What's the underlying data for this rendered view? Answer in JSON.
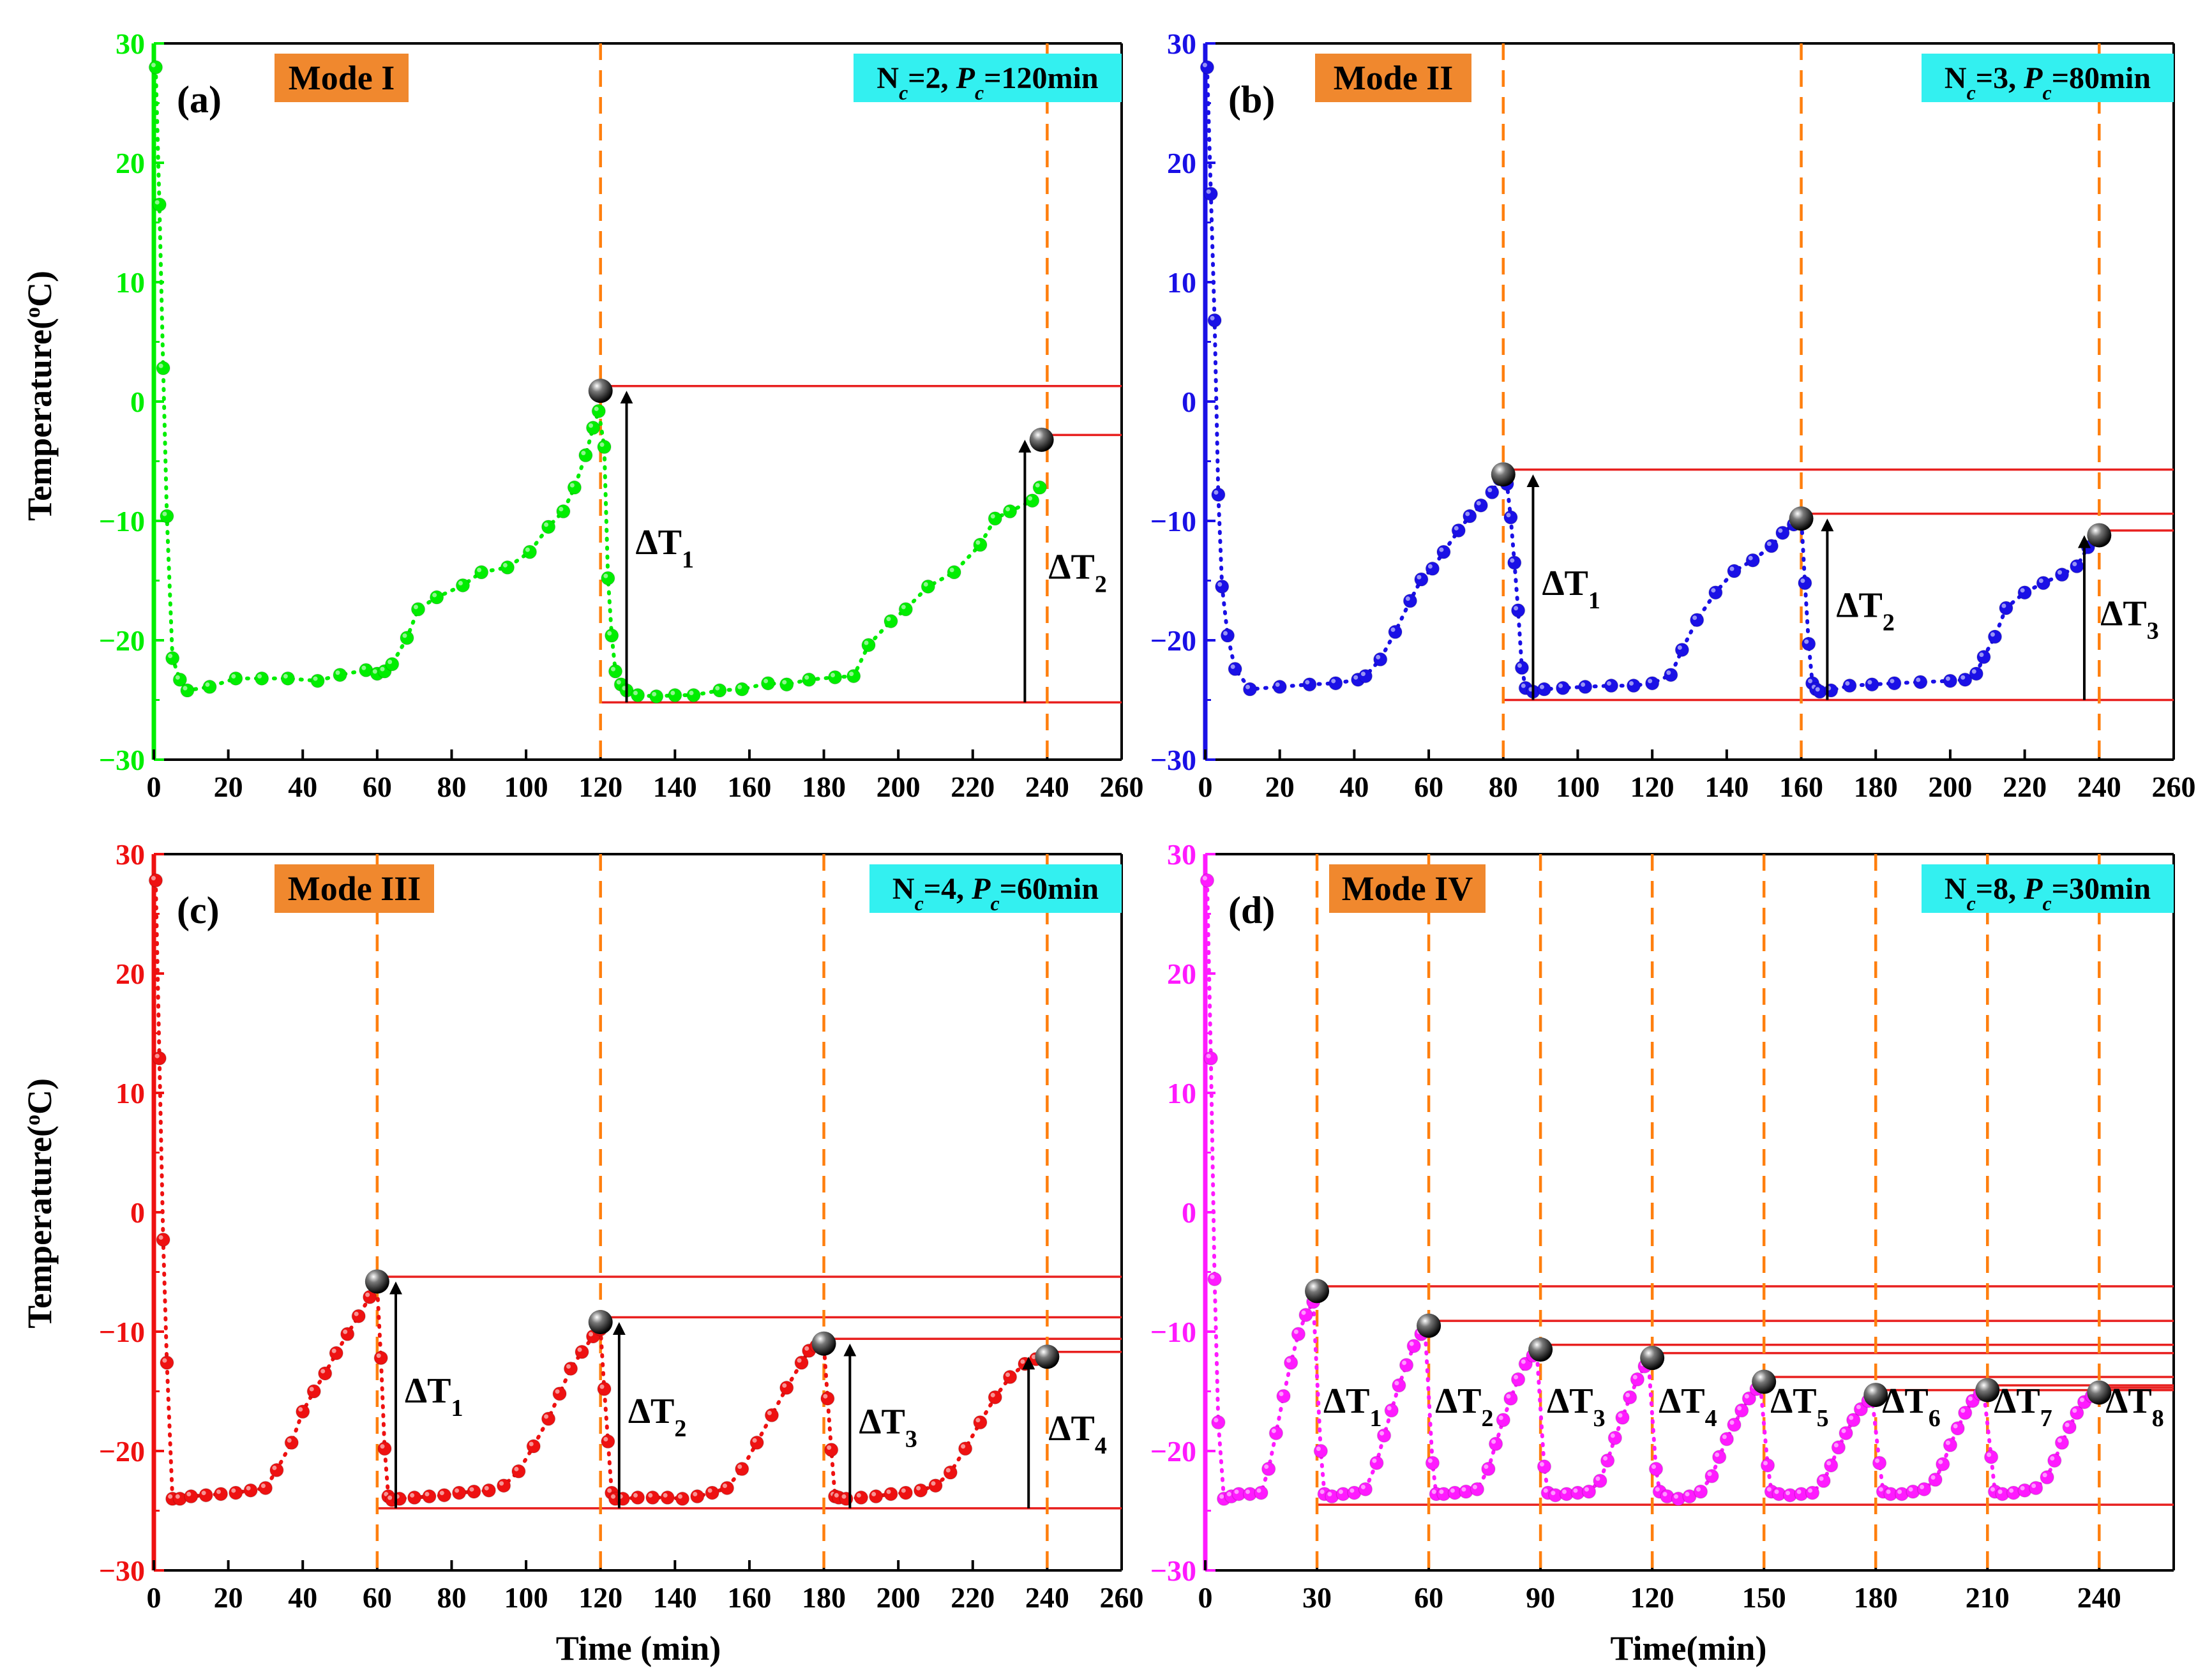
{
  "figure": {
    "y_axis_title_main": "Temperature(",
    "y_axis_title_sup": "o",
    "y_axis_title_tail": "C)",
    "x_axis_title_left": "Time (min)",
    "x_axis_title_right": "Time(min)"
  },
  "chart_data": [
    {
      "type": "scatter",
      "panel_label": "(a)",
      "mode_label": "Mode I",
      "param_label": {
        "n_value": "2",
        "p_value": "120min"
      },
      "color": "#00ee00",
      "cycle_lines": [
        120,
        240
      ],
      "cycle_line_color": "#ff7f0e",
      "ref_line_color": "#e8201f",
      "xlim": [
        0,
        260
      ],
      "ylim": [
        -30,
        30
      ],
      "xticks": [
        "0",
        "20",
        "40",
        "60",
        "80",
        "100",
        "120",
        "140",
        "160",
        "180",
        "200",
        "220",
        "240",
        "260"
      ],
      "yticks": [
        "30",
        "20",
        "10",
        "0",
        "−10",
        "−20",
        "−30"
      ],
      "xlabel": "",
      "ylabel": "Temperature(oC)",
      "baseline": -25.2,
      "peaks": [
        {
          "x": 120,
          "y": 0.9,
          "label_sub": "1",
          "arrow_x": 127
        },
        {
          "x": 238.5,
          "y": -3.2,
          "label_sub": "2",
          "arrow_x": 234
        }
      ],
      "series": [
        {
          "name": "Mode I",
          "x": [
            0.5,
            1.5,
            2.5,
            3.5,
            5,
            7,
            9,
            15,
            22,
            29,
            36,
            44,
            50,
            57,
            60,
            62,
            64,
            68,
            71,
            76,
            83,
            88,
            95,
            101,
            106,
            110,
            113,
            116,
            118,
            119.5,
            121,
            122,
            123,
            124,
            125.5,
            127,
            130,
            135,
            140,
            145,
            152,
            158,
            165,
            170,
            176,
            183,
            188,
            192,
            198,
            202,
            208,
            215,
            222,
            226,
            230,
            236,
            238
          ],
          "y": [
            28,
            16.5,
            2.8,
            -9.6,
            -21.5,
            -23.3,
            -24.2,
            -23.9,
            -23.2,
            -23.2,
            -23.2,
            -23.4,
            -22.9,
            -22.5,
            -22.8,
            -22.6,
            -22.0,
            -19.8,
            -17.4,
            -16.4,
            -15.4,
            -14.3,
            -13.9,
            -12.6,
            -10.5,
            -9.2,
            -7.2,
            -4.5,
            -2.2,
            -0.8,
            -3.8,
            -14.8,
            -19.6,
            -22.6,
            -23.7,
            -24.2,
            -24.6,
            -24.7,
            -24.6,
            -24.6,
            -24.2,
            -24.1,
            -23.6,
            -23.7,
            -23.3,
            -23.1,
            -23.0,
            -20.4,
            -18.4,
            -17.4,
            -15.5,
            -14.3,
            -12.0,
            -9.8,
            -9.2,
            -8.3,
            -7.2
          ]
        }
      ]
    },
    {
      "type": "scatter",
      "panel_label": "(b)",
      "mode_label": "Mode II",
      "param_label": {
        "n_value": "3",
        "p_value": "80min"
      },
      "color": "#1a10e6",
      "cycle_lines": [
        80,
        160,
        240
      ],
      "cycle_line_color": "#ff7f0e",
      "ref_line_color": "#e8201f",
      "xlim": [
        0,
        260
      ],
      "ylim": [
        -30,
        30
      ],
      "xticks": [
        "0",
        "20",
        "40",
        "60",
        "80",
        "100",
        "120",
        "140",
        "160",
        "180",
        "200",
        "220",
        "240",
        "260"
      ],
      "yticks": [
        "30",
        "20",
        "10",
        "0",
        "−10",
        "−20",
        "−30"
      ],
      "xlabel": "",
      "ylabel": "",
      "baseline": -25.0,
      "peaks": [
        {
          "x": 80,
          "y": -6.1,
          "label_sub": "1",
          "arrow_x": 88
        },
        {
          "x": 160,
          "y": -9.8,
          "label_sub": "2",
          "arrow_x": 167
        },
        {
          "x": 240,
          "y": -11.2,
          "label_sub": "3",
          "arrow_x": 236
        }
      ],
      "series": [
        {
          "name": "Mode II",
          "x": [
            0.5,
            1.5,
            2.5,
            3.5,
            4.5,
            6,
            8,
            12,
            20,
            28,
            35,
            41,
            43,
            47,
            51,
            55,
            58,
            61,
            64,
            68,
            71,
            74,
            77,
            79,
            81,
            82,
            83,
            84,
            85,
            86,
            88,
            91,
            96,
            102,
            109,
            115,
            120,
            125,
            128,
            132,
            137,
            142,
            147,
            152,
            155,
            158,
            160,
            161,
            162,
            163,
            164,
            165,
            168,
            173,
            179,
            185,
            192,
            200,
            204,
            207,
            209,
            212,
            215,
            220,
            225,
            230,
            234,
            237
          ],
          "y": [
            28,
            17.4,
            6.8,
            -7.8,
            -15.5,
            -19.6,
            -22.4,
            -24.1,
            -23.9,
            -23.7,
            -23.6,
            -23.3,
            -23.0,
            -21.6,
            -19.3,
            -16.7,
            -14.9,
            -14.0,
            -12.6,
            -10.8,
            -9.6,
            -8.7,
            -7.6,
            -6.5,
            -6.9,
            -9.7,
            -13.5,
            -17.5,
            -22.3,
            -24.0,
            -24.3,
            -24.1,
            -24.0,
            -23.9,
            -23.8,
            -23.8,
            -23.6,
            -22.9,
            -20.8,
            -18.3,
            -16.0,
            -14.2,
            -13.3,
            -12.1,
            -11.0,
            -10.3,
            -9.6,
            -15.2,
            -20.3,
            -23.6,
            -24.1,
            -24.3,
            -24.2,
            -23.8,
            -23.7,
            -23.6,
            -23.5,
            -23.4,
            -23.3,
            -22.8,
            -21.4,
            -19.7,
            -17.3,
            -16.0,
            -15.2,
            -14.5,
            -13.8,
            -12.2
          ]
        }
      ]
    },
    {
      "type": "scatter",
      "panel_label": "(c)",
      "mode_label": "Mode III",
      "param_label": {
        "n_value": "4",
        "p_value": "60min"
      },
      "color": "#ee1111",
      "cycle_lines": [
        60,
        120,
        180,
        240
      ],
      "cycle_line_color": "#ff7f0e",
      "ref_line_color": "#e8201f",
      "xlim": [
        0,
        260
      ],
      "ylim": [
        -30,
        30
      ],
      "xticks": [
        "0",
        "20",
        "40",
        "60",
        "80",
        "100",
        "120",
        "140",
        "160",
        "180",
        "200",
        "220",
        "240",
        "260"
      ],
      "yticks": [
        "30",
        "20",
        "10",
        "0",
        "−10",
        "−20",
        "−30"
      ],
      "xlabel": "Time (min)",
      "ylabel": "Temperature(oC)",
      "baseline": -24.8,
      "peaks": [
        {
          "x": 60,
          "y": -5.8,
          "label_sub": "1",
          "arrow_x": 65
        },
        {
          "x": 120,
          "y": -9.2,
          "label_sub": "2",
          "arrow_x": 125
        },
        {
          "x": 180,
          "y": -11.0,
          "label_sub": "3",
          "arrow_x": 187
        },
        {
          "x": 240,
          "y": -12.1,
          "label_sub": "4",
          "arrow_x": 235
        }
      ],
      "series": [
        {
          "name": "Mode III",
          "x": [
            0.5,
            1.5,
            2.5,
            3.5,
            5,
            7,
            10,
            14,
            18,
            22,
            26,
            30,
            33,
            37,
            40,
            43,
            46,
            49,
            52,
            55,
            58,
            60,
            61,
            62,
            63,
            64,
            66,
            70,
            74,
            78,
            82,
            86,
            90,
            94,
            98,
            102,
            106,
            109,
            112,
            115,
            118,
            120,
            121,
            122,
            123,
            124,
            126,
            130,
            134,
            138,
            142,
            146,
            150,
            154,
            158,
            162,
            166,
            170,
            174,
            176,
            178,
            180,
            181,
            182,
            183,
            184,
            186,
            190,
            194,
            198,
            202,
            206,
            210,
            214,
            218,
            222,
            226,
            230,
            234,
            237
          ],
          "y": [
            27.8,
            12.9,
            -2.3,
            -12.6,
            -24.0,
            -24.0,
            -23.8,
            -23.7,
            -23.6,
            -23.5,
            -23.3,
            -23.1,
            -21.6,
            -19.3,
            -16.7,
            -15.0,
            -13.5,
            -11.8,
            -10.2,
            -8.7,
            -7.1,
            -6.2,
            -12.2,
            -19.8,
            -23.8,
            -24.1,
            -24.0,
            -23.9,
            -23.8,
            -23.7,
            -23.5,
            -23.4,
            -23.3,
            -22.9,
            -21.7,
            -19.6,
            -17.3,
            -15.2,
            -13.1,
            -11.7,
            -10.4,
            -9.8,
            -14.8,
            -19.2,
            -23.5,
            -24.0,
            -24.0,
            -23.9,
            -23.9,
            -23.9,
            -24.0,
            -23.8,
            -23.5,
            -23.1,
            -21.5,
            -19.3,
            -17.0,
            -14.7,
            -12.6,
            -11.6,
            -11.2,
            -11.1,
            -15.6,
            -19.9,
            -23.8,
            -23.9,
            -24.0,
            -23.9,
            -23.8,
            -23.6,
            -23.5,
            -23.3,
            -22.9,
            -21.8,
            -19.8,
            -17.6,
            -15.5,
            -13.8,
            -12.7,
            -12.3
          ]
        }
      ]
    },
    {
      "type": "scatter",
      "panel_label": "(d)",
      "mode_label": "Mode IV",
      "param_label": {
        "n_value": "8",
        "p_value": "30min"
      },
      "color": "#ff1aff",
      "cycle_lines": [
        30,
        60,
        90,
        120,
        150,
        180,
        210,
        240
      ],
      "cycle_line_color": "#ff7f0e",
      "ref_line_color": "#e8201f",
      "xlim": [
        0,
        260
      ],
      "ylim": [
        -30,
        30
      ],
      "xticks": [
        "0",
        "30",
        "60",
        "90",
        "120",
        "150",
        "180",
        "210",
        "240"
      ],
      "xtick_values": [
        0,
        30,
        60,
        90,
        120,
        150,
        180,
        210,
        240
      ],
      "yticks": [
        "30",
        "20",
        "10",
        "0",
        "−10",
        "−20",
        "−30"
      ],
      "xlabel": "Time(min)",
      "ylabel": "",
      "baseline": -24.5,
      "peaks": [
        {
          "x": 30,
          "y": -6.6,
          "label_sub": "1"
        },
        {
          "x": 60,
          "y": -9.5,
          "label_sub": "2"
        },
        {
          "x": 90,
          "y": -11.5,
          "label_sub": "3"
        },
        {
          "x": 120,
          "y": -12.2,
          "label_sub": "4"
        },
        {
          "x": 150,
          "y": -14.2,
          "label_sub": "5"
        },
        {
          "x": 180,
          "y": -15.3,
          "label_sub": "6"
        },
        {
          "x": 210,
          "y": -14.9,
          "label_sub": "7"
        },
        {
          "x": 240,
          "y": -15.1,
          "label_sub": "8"
        }
      ],
      "series": [
        {
          "name": "Mode IV",
          "x": [
            0.5,
            1.5,
            2.5,
            3.5,
            5,
            7,
            9,
            12,
            15,
            17,
            19,
            21,
            23,
            25,
            27,
            29,
            31,
            32,
            34,
            37,
            40,
            43,
            46,
            48,
            50,
            52,
            54,
            56,
            58,
            59,
            61,
            62,
            64,
            67,
            70,
            73,
            76,
            78,
            80,
            82,
            84,
            86,
            88,
            89,
            91,
            92,
            94,
            97,
            100,
            103,
            106,
            108,
            110,
            112,
            114,
            116,
            118,
            119,
            121,
            122,
            124,
            127,
            130,
            133,
            136,
            138,
            140,
            142,
            144,
            146,
            148,
            149,
            151,
            152,
            154,
            157,
            160,
            163,
            166,
            168,
            170,
            172,
            174,
            176,
            178,
            179,
            181,
            182,
            184,
            187,
            190,
            193,
            196,
            198,
            200,
            202,
            204,
            206,
            208,
            209,
            211,
            212,
            214,
            217,
            220,
            223,
            226,
            228,
            230,
            232,
            234,
            236,
            238
          ],
          "y": [
            27.8,
            12.9,
            -5.6,
            -17.6,
            -24.0,
            -23.8,
            -23.6,
            -23.6,
            -23.5,
            -21.5,
            -18.5,
            -15.4,
            -12.6,
            -10.2,
            -8.6,
            -7.5,
            -20.0,
            -23.6,
            -23.8,
            -23.6,
            -23.5,
            -23.2,
            -21.0,
            -18.7,
            -16.6,
            -14.5,
            -12.8,
            -11.2,
            -10.2,
            -9.7,
            -21.0,
            -23.6,
            -23.6,
            -23.5,
            -23.4,
            -23.2,
            -21.5,
            -19.4,
            -17.4,
            -15.6,
            -14.0,
            -12.7,
            -12.0,
            -11.6,
            -21.3,
            -23.5,
            -23.7,
            -23.6,
            -23.5,
            -23.4,
            -22.5,
            -20.8,
            -18.9,
            -17.2,
            -15.5,
            -14.0,
            -12.9,
            -12.5,
            -21.5,
            -23.4,
            -23.8,
            -24.0,
            -23.8,
            -23.4,
            -22.1,
            -20.5,
            -19.0,
            -17.8,
            -16.6,
            -15.6,
            -14.8,
            -14.4,
            -21.2,
            -23.4,
            -23.6,
            -23.7,
            -23.6,
            -23.5,
            -22.5,
            -21.2,
            -19.7,
            -18.5,
            -17.4,
            -16.5,
            -15.8,
            -15.5,
            -21.0,
            -23.4,
            -23.6,
            -23.6,
            -23.4,
            -23.2,
            -22.4,
            -21.1,
            -19.5,
            -18.1,
            -16.8,
            -15.8,
            -15.2,
            -15.0,
            -20.5,
            -23.4,
            -23.6,
            -23.5,
            -23.3,
            -23.1,
            -22.2,
            -20.8,
            -19.3,
            -18.0,
            -16.8,
            -15.9,
            -15.4
          ]
        }
      ]
    }
  ]
}
